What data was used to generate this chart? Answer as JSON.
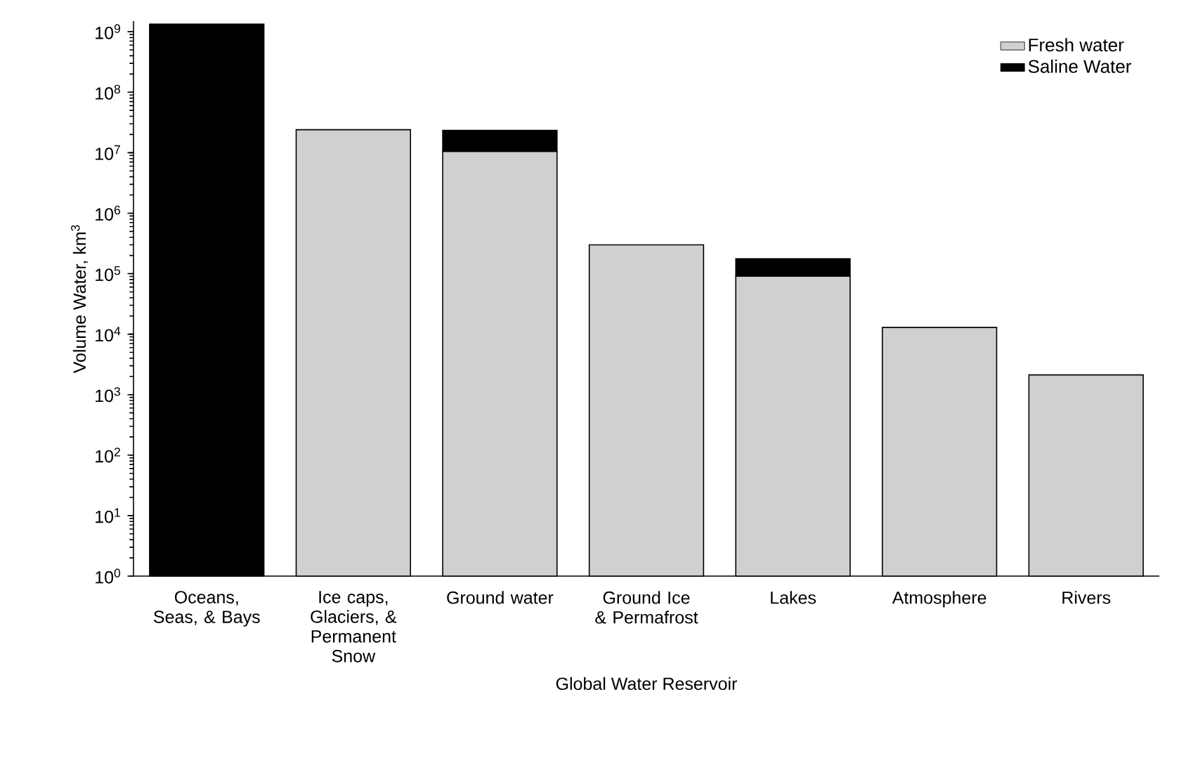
{
  "chart_data": {
    "type": "bar",
    "stacked": true,
    "log": true,
    "xlabel": "Global Water Reservoir",
    "ylabel": "Volume Water, km$^{3}$",
    "categories": [
      "Oceans, Seas, & Bays",
      "Ice caps, Glaciers, & Permanent Snow",
      "Ground water",
      "Ground Ice & Permafrost",
      "Lakes",
      "Atmosphere",
      "Rivers"
    ],
    "series": [
      {
        "name": "Fresh water",
        "color": "#d0d0d0",
        "values": [
          null,
          24000000,
          10500000,
          300000,
          91000,
          12900,
          2120
        ]
      },
      {
        "name": "Saline Water",
        "color": "#000000",
        "values": [
          1338000000,
          null,
          12900000,
          null,
          85000,
          null,
          null
        ]
      }
    ],
    "ylim": [
      1,
      1500000000
    ],
    "yticks": [
      {
        "value": 1,
        "label": "10$^{0}$"
      },
      {
        "value": 10,
        "label": "10$^{1}$"
      },
      {
        "value": 100,
        "label": "10$^{2}$"
      },
      {
        "value": 1000,
        "label": "10$^{3}$"
      },
      {
        "value": 10000,
        "label": "10$^{4}$"
      },
      {
        "value": 100000,
        "label": "10$^{5}$"
      },
      {
        "value": 1000000,
        "label": "10$^{6}$"
      },
      {
        "value": 10000000,
        "label": "10$^{7}$"
      },
      {
        "value": 100000000,
        "label": "10$^{8}$"
      },
      {
        "value": 1000000000,
        "label": "10$^{9}$"
      }
    ],
    "legend": "top right",
    "grid": false
  }
}
